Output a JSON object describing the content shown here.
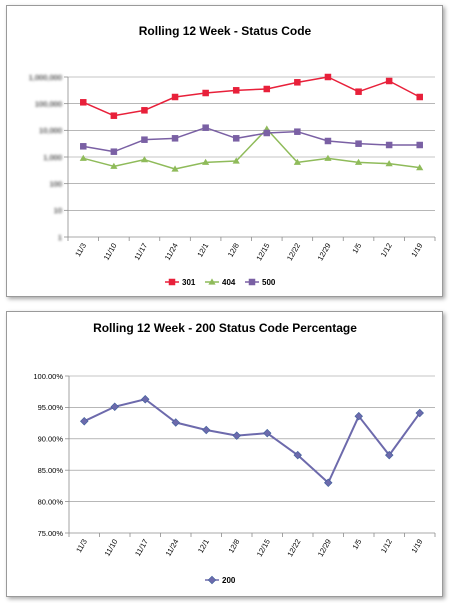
{
  "chart_data": [
    {
      "type": "line",
      "title": "Rolling 12 Week - Status Code",
      "categories": [
        "11/3",
        "11/10",
        "11/17",
        "11/24",
        "12/1",
        "12/8",
        "12/15",
        "12/22",
        "12/29",
        "1/5",
        "1/12",
        "1/19"
      ],
      "ylim": [
        0,
        6
      ],
      "y_ticks": [
        "1,000,000",
        "100,000",
        "10,000",
        "1,000",
        "100",
        "10",
        "1"
      ],
      "y_ticks_blurred": true,
      "grid": true,
      "legend": "bottom",
      "series": [
        {
          "name": "301",
          "color": "#e8203a",
          "marker": "square",
          "values": [
            5.05,
            4.55,
            4.75,
            5.25,
            5.4,
            5.5,
            5.55,
            5.8,
            6.0,
            5.45,
            5.85,
            5.25
          ]
        },
        {
          "name": "404",
          "color": "#8fbb5a",
          "marker": "triangle",
          "values": [
            2.95,
            2.65,
            2.9,
            2.55,
            2.8,
            2.85,
            4.05,
            2.8,
            2.95,
            2.8,
            2.75,
            2.6
          ]
        },
        {
          "name": "500",
          "color": "#7a60a4",
          "marker": "square",
          "values": [
            3.4,
            3.2,
            3.65,
            3.7,
            4.1,
            3.7,
            3.9,
            3.95,
            3.6,
            3.5,
            3.45,
            3.45
          ]
        }
      ]
    },
    {
      "type": "line",
      "title": "Rolling 12 Week - 200 Status Code Percentage",
      "categories": [
        "11/3",
        "11/10",
        "11/17",
        "11/24",
        "12/1",
        "12/8",
        "12/15",
        "12/22",
        "12/29",
        "1/5",
        "1/12",
        "1/19"
      ],
      "ylim": [
        75,
        100
      ],
      "y_ticks": [
        "100.00%",
        "95.00%",
        "90.00%",
        "85.00%",
        "80.00%",
        "75.00%"
      ],
      "grid": true,
      "legend": "bottom",
      "series": [
        {
          "name": "200",
          "color": "#6d6aac",
          "marker": "diamond",
          "values": [
            92.8,
            95.1,
            96.3,
            92.6,
            91.4,
            90.5,
            90.9,
            87.4,
            83.0,
            93.6,
            87.4,
            94.1
          ]
        }
      ]
    }
  ]
}
